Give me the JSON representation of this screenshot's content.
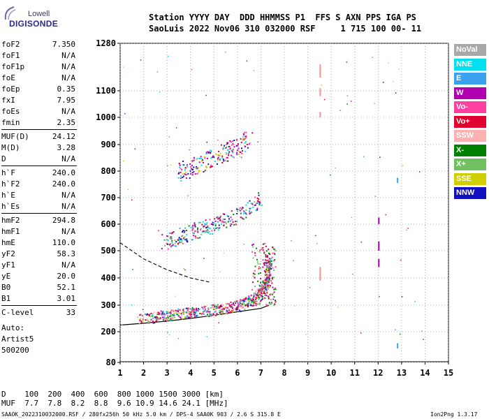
{
  "logo": {
    "brand": "Lowell",
    "product": "DIGISONDE"
  },
  "header": {
    "row1": "Station YYYY DAY  DDD HHMMSS P1  FFS S AXN PPS IGA PS",
    "row2": "SaoLuis 2022 Nov06 310 032000 RSF     1 715 100 00- 11"
  },
  "params": [
    {
      "name": "foF2",
      "value": "7.350"
    },
    {
      "name": "foF1",
      "value": "N/A"
    },
    {
      "name": "foF1p",
      "value": "N/A"
    },
    {
      "name": "foE",
      "value": "N/A"
    },
    {
      "name": "foEp",
      "value": "0.35"
    },
    {
      "name": "fxI",
      "value": "7.95"
    },
    {
      "name": "foEs",
      "value": "N/A"
    },
    {
      "name": "fmin",
      "value": "2.35"
    },
    {
      "name": "MUF(D)",
      "value": "24.12"
    },
    {
      "name": "M(D)",
      "value": "3.28"
    },
    {
      "name": "D",
      "value": "N/A"
    },
    {
      "name": "h`F",
      "value": "240.0"
    },
    {
      "name": "h`F2",
      "value": "240.0"
    },
    {
      "name": "h`E",
      "value": "N/A"
    },
    {
      "name": "h`Es",
      "value": "N/A"
    },
    {
      "name": "hmF2",
      "value": "294.8"
    },
    {
      "name": "hmF1",
      "value": "N/A"
    },
    {
      "name": "hmE",
      "value": "110.0"
    },
    {
      "name": "yF2",
      "value": "58.3"
    },
    {
      "name": "yF1",
      "value": "N/A"
    },
    {
      "name": "yE",
      "value": "20.0"
    },
    {
      "name": "B0",
      "value": "52.1"
    },
    {
      "name": "B1",
      "value": "3.01"
    },
    {
      "name": "C-level",
      "value": "33"
    }
  ],
  "auto": [
    "Auto:",
    "Artist5",
    "500200"
  ],
  "legend": [
    {
      "label": "NoVal",
      "color": "#a8a8a8"
    },
    {
      "label": "NNE",
      "color": "#00e0f0"
    },
    {
      "label": "E",
      "color": "#3aa0f0"
    },
    {
      "label": "W",
      "color": "#b000b0"
    },
    {
      "label": "Vo-",
      "color": "#ff40a0"
    },
    {
      "label": "Vo+",
      "color": "#e00030"
    },
    {
      "label": "SSW",
      "color": "#ffb0b0"
    },
    {
      "label": "X-",
      "color": "#008000"
    },
    {
      "label": "X+",
      "color": "#70c060"
    },
    {
      "label": "SSE",
      "color": "#d0d000"
    },
    {
      "label": "NNW",
      "color": "#1010c0"
    }
  ],
  "footer": {
    "d_label": "D",
    "d_values": "  100  200  400  600  800 1000 1500 3000 [km]",
    "muf_label": "MUF",
    "muf_values": "  7.7  7.8  8.2  8.8  9.6 10.9 14.6 24.1 [MHz]",
    "file_line": "SAAOK_2022310032000.RSF / 280fx256h 50 kHz 5.0 km / DPS-4 SAA0K 903 / 2.6 S 315.8 E",
    "version": "Ion2Png 1.3.17"
  },
  "chart_data": {
    "type": "scatter",
    "title": "",
    "xlabel": "",
    "ylabel": "",
    "xlim": [
      1,
      15
    ],
    "ylim": [
      80,
      1280
    ],
    "x_ticks": [
      1,
      2,
      3,
      4,
      5,
      6,
      7,
      8,
      9,
      10,
      11,
      12,
      13,
      14,
      15
    ],
    "y_ticks": [
      80,
      200,
      300,
      400,
      500,
      600,
      700,
      800,
      900,
      1000,
      1100,
      1280
    ],
    "y_scale": "nonlinear (virtual height ionogram)",
    "grid": true,
    "legend_position": "right",
    "traces": [
      {
        "name": "F-layer 1st hop trace",
        "freq_mhz": [
          1.8,
          3.0,
          4.0,
          5.0,
          6.0,
          6.8,
          7.2,
          7.35
        ],
        "height_km": [
          240,
          255,
          265,
          275,
          290,
          320,
          370,
          460
        ]
      },
      {
        "name": "F-layer 2nd hop trace",
        "freq_mhz": [
          2.8,
          4.0,
          5.0,
          6.0,
          7.0
        ],
        "height_km": [
          520,
          560,
          590,
          620,
          680
        ]
      },
      {
        "name": "F-layer 3rd hop trace",
        "freq_mhz": [
          3.5,
          4.5,
          5.5,
          6.5
        ],
        "height_km": [
          780,
          820,
          860,
          910
        ]
      }
    ],
    "profile_curves": [
      {
        "name": "model solid",
        "freq_mhz": [
          1.0,
          2.0,
          3.0,
          4.0,
          5.0,
          6.0,
          7.0,
          7.35
        ],
        "height_km": [
          225,
          232,
          240,
          250,
          262,
          275,
          288,
          300
        ]
      },
      {
        "name": "model dashed",
        "freq_mhz": [
          1.0,
          2.0,
          3.0,
          4.0,
          4.8
        ],
        "height_km": [
          530,
          470,
          430,
          400,
          385
        ]
      }
    ]
  }
}
